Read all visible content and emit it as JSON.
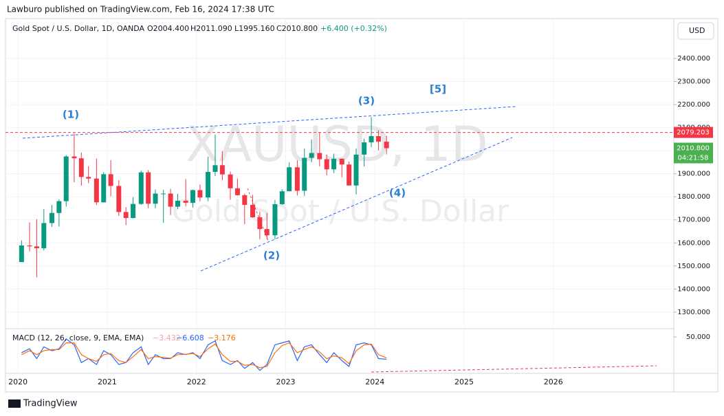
{
  "header": {
    "publisher": "Lawburo published on TradingView.com, Feb 16, 2024 17:38 UTC",
    "footer": "TradingView",
    "currency_button": "USD"
  },
  "legend": {
    "symbol": "Gold Spot / U.S. Dollar, 1D, OANDA",
    "open": "O2004.400",
    "high": "H2011.090",
    "low": "L1995.160",
    "close": "C2010.800",
    "change": "+6.400 (+0.32%)"
  },
  "watermark": {
    "symbol": "XAUUSD, 1D",
    "description": "Gold Spot / U.S. Dollar"
  },
  "annotations": [
    "(1)",
    "(2)",
    "(3)",
    "(4)",
    "[5]"
  ],
  "chart_data": [
    {
      "type": "candlestick",
      "color_up": "#089981",
      "color_down": "#f23645",
      "grid": true,
      "x": [
        2020.04,
        2020.13,
        2020.21,
        2020.29,
        2020.38,
        2020.46,
        2020.54,
        2020.63,
        2020.71,
        2020.79,
        2020.88,
        2020.96,
        2021.04,
        2021.13,
        2021.21,
        2021.29,
        2021.38,
        2021.46,
        2021.54,
        2021.63,
        2021.71,
        2021.79,
        2021.88,
        2021.96,
        2022.04,
        2022.13,
        2022.21,
        2022.29,
        2022.38,
        2022.46,
        2022.54,
        2022.63,
        2022.71,
        2022.79,
        2022.88,
        2022.96,
        2023.04,
        2023.13,
        2023.21,
        2023.29,
        2023.38,
        2023.46,
        2023.54,
        2023.63,
        2023.71,
        2023.79,
        2023.88,
        2023.96,
        2024.04,
        2024.13
      ],
      "open": [
        1517,
        1589,
        1585,
        1577,
        1686,
        1730,
        1781,
        1975,
        1967,
        1886,
        1879,
        1776,
        1898,
        1847,
        1734,
        1708,
        1769,
        1906,
        1770,
        1814,
        1814,
        1757,
        1783,
        1774,
        1829,
        1797,
        1908,
        1937,
        1897,
        1837,
        1807,
        1765,
        1711,
        1660,
        1633,
        1768,
        1824,
        1928,
        1826,
        1969,
        1990,
        1963,
        1919,
        1965,
        1940,
        1849,
        1983,
        2036,
        2063,
        2039
      ],
      "high": [
        1611,
        1689,
        1703,
        1747,
        1765,
        1789,
        1981,
        2075,
        1992,
        1933,
        1966,
        1907,
        1959,
        1872,
        1755,
        1798,
        1913,
        1916,
        1832,
        1831,
        1834,
        1813,
        1877,
        1831,
        1853,
        1974,
        2070,
        1998,
        1910,
        1879,
        1814,
        1808,
        1735,
        1730,
        1786,
        1833,
        1949,
        1959,
        2009,
        2049,
        2079,
        1983,
        1987,
        1966,
        1953,
        2009,
        2052,
        2146,
        2088,
        2065
      ],
      "low": [
        1517,
        1563,
        1451,
        1567,
        1670,
        1671,
        1757,
        1863,
        1848,
        1859,
        1764,
        1775,
        1802,
        1717,
        1677,
        1706,
        1765,
        1751,
        1750,
        1687,
        1721,
        1746,
        1758,
        1753,
        1780,
        1781,
        1890,
        1872,
        1787,
        1805,
        1681,
        1709,
        1615,
        1617,
        1616,
        1765,
        1824,
        1805,
        1804,
        1950,
        1932,
        1893,
        1903,
        1885,
        1849,
        1810,
        1931,
        2016,
        2001,
        1984
      ],
      "close": [
        1589,
        1585,
        1577,
        1686,
        1730,
        1781,
        1975,
        1967,
        1886,
        1879,
        1776,
        1898,
        1847,
        1734,
        1708,
        1769,
        1906,
        1770,
        1814,
        1814,
        1757,
        1783,
        1774,
        1829,
        1797,
        1908,
        1937,
        1897,
        1837,
        1807,
        1765,
        1711,
        1660,
        1633,
        1768,
        1824,
        1928,
        1826,
        1969,
        1990,
        1963,
        1919,
        1965,
        1940,
        1849,
        1983,
        2036,
        2063,
        2039,
        2010.8
      ],
      "xlim": [
        2019.86,
        2027.35
      ],
      "xticks": [
        2020,
        2021,
        2022,
        2023,
        2024,
        2025,
        2026
      ],
      "ylim": [
        1228,
        2573
      ],
      "yticks": [
        {
          "value": 1300,
          "label": "1300.000"
        },
        {
          "value": 1400,
          "label": "1400.000"
        },
        {
          "value": 1500,
          "label": "1500.000"
        },
        {
          "value": 1600,
          "label": "1600.000"
        },
        {
          "value": 1700,
          "label": "1700.000"
        },
        {
          "value": 1800,
          "label": "1800.000"
        },
        {
          "value": 1900,
          "label": "1900.000"
        },
        {
          "value": 2000,
          "label": "2000.000"
        },
        {
          "value": 2100,
          "label": "2100.000"
        },
        {
          "value": 2200,
          "label": "2200.000"
        },
        {
          "value": 2300,
          "label": "2300.000"
        },
        {
          "value": 2400,
          "label": "2400.000"
        }
      ],
      "price_line": {
        "value": 2079.203,
        "label": "2079.203",
        "color": "#f23645"
      },
      "last_price": {
        "value": 2010.8,
        "label": "2010.800",
        "countdown": "04:21:58",
        "color": "#4caf50"
      }
    },
    {
      "type": "macd",
      "title": "MACD (12, 26, close, 9, EMA, EMA)",
      "value_labels": [
        "−3.432",
        "−6.608",
        "−3.176"
      ],
      "ylim": [
        -39,
        71
      ],
      "yticks": [
        {
          "value": 50,
          "label": "50.000"
        }
      ],
      "series": [
        {
          "name": "MACD",
          "color": "#2962ff",
          "values": [
            10,
            20,
            -5,
            25,
            15,
            20,
            45,
            30,
            -15,
            -5,
            -20,
            15,
            5,
            -20,
            -15,
            10,
            25,
            -20,
            5,
            -5,
            -5,
            10,
            5,
            10,
            -5,
            30,
            40,
            -10,
            -20,
            -10,
            -30,
            -15,
            -35,
            -20,
            30,
            35,
            40,
            -10,
            25,
            30,
            5,
            -15,
            10,
            -10,
            -25,
            30,
            35,
            30,
            -5,
            -6.608
          ]
        },
        {
          "name": "Signal",
          "color": "#ff6d00",
          "values": [
            5,
            15,
            5,
            15,
            18,
            18,
            35,
            35,
            5,
            -5,
            -12,
            5,
            8,
            -10,
            -15,
            0,
            18,
            -5,
            0,
            -2,
            -4,
            5,
            6,
            8,
            0,
            20,
            32,
            5,
            -12,
            -12,
            -22,
            -20,
            -28,
            -25,
            10,
            28,
            35,
            10,
            18,
            25,
            12,
            -5,
            2,
            -3,
            -18,
            15,
            30,
            32,
            5,
            -3.176
          ]
        }
      ]
    }
  ]
}
